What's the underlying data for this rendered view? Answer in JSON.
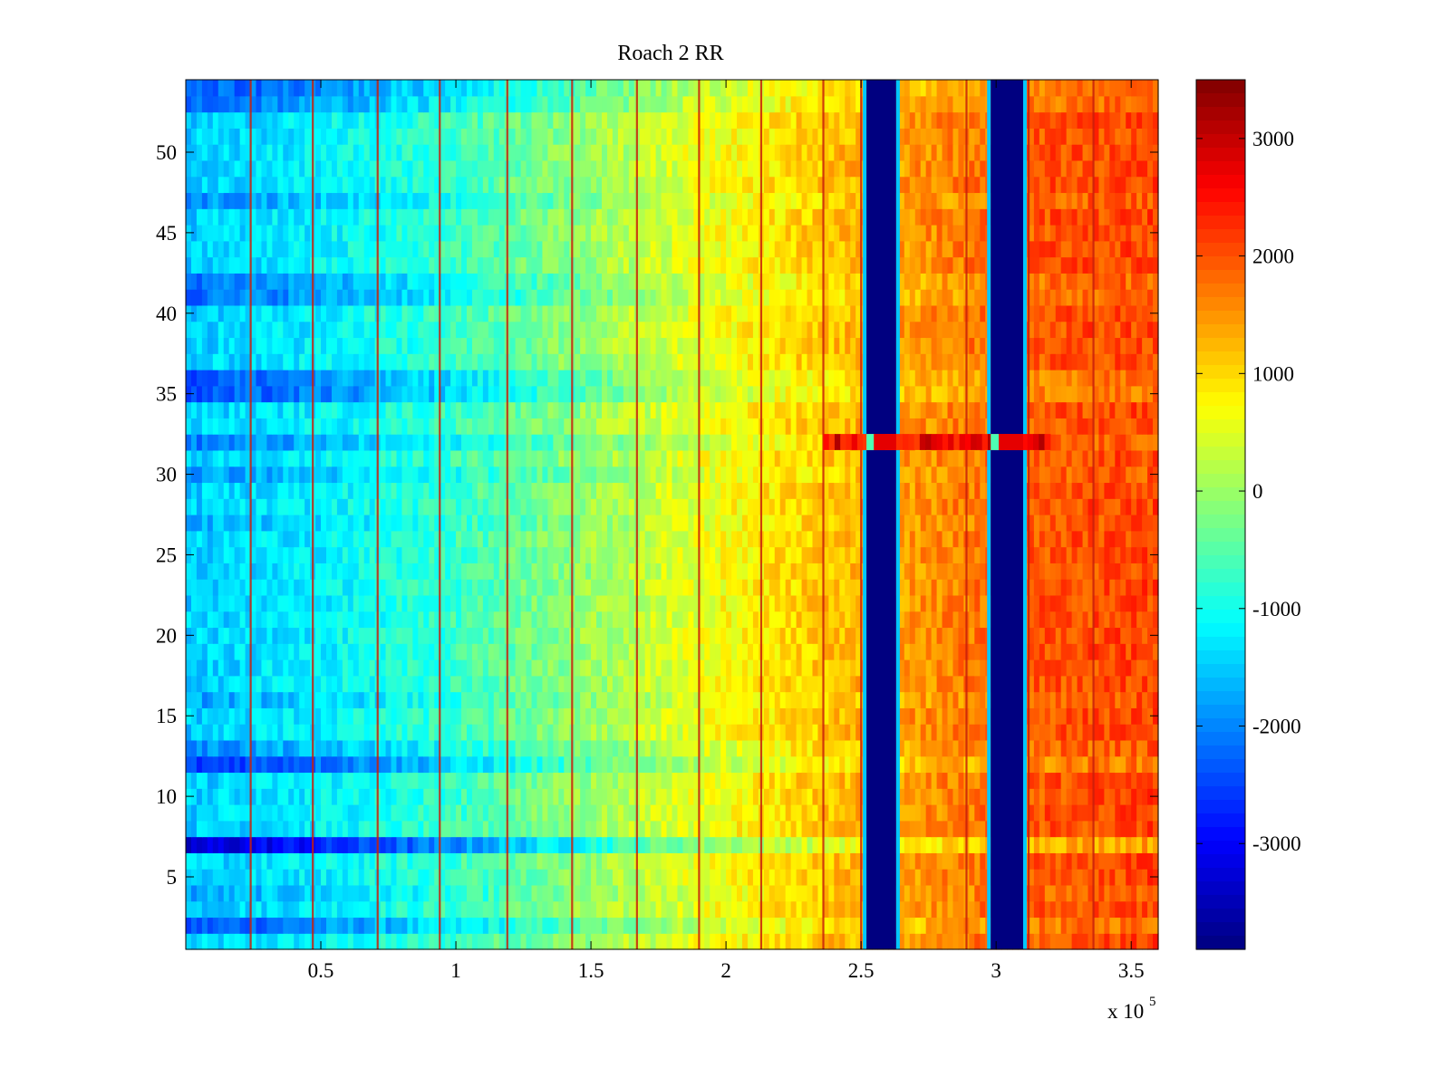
{
  "chart_data": {
    "type": "heatmap",
    "title": "Roach 2 RR",
    "xlabel": "",
    "ylabel": "",
    "x_multiplier": {
      "base": "x 10",
      "exponent": "5"
    },
    "xlim": [
      0,
      3.6
    ],
    "ylim": [
      0.5,
      54.5
    ],
    "x_ticks": [
      0.5,
      1,
      1.5,
      2,
      2.5,
      3,
      3.5
    ],
    "x_tick_labels": [
      "0.5",
      "1",
      "1.5",
      "2",
      "2.5",
      "3",
      "3.5"
    ],
    "y_ticks": [
      5,
      10,
      15,
      20,
      25,
      30,
      35,
      40,
      45,
      50
    ],
    "y_tick_labels": [
      "5",
      "10",
      "15",
      "20",
      "25",
      "30",
      "35",
      "40",
      "45",
      "50"
    ],
    "rows": 54,
    "colormap": "jet",
    "clim": [
      -3900,
      3500
    ],
    "colorbar": {
      "ticks": [
        3000,
        2000,
        1000,
        0,
        -1000,
        -2000,
        -3000
      ],
      "tick_labels": [
        "3000",
        "2000",
        "1000",
        "0",
        "-1000",
        "-2000",
        "-3000"
      ]
    },
    "trend": {
      "x": [
        0,
        0.5,
        1.0,
        1.5,
        2.0,
        2.5,
        3.2,
        3.6
      ],
      "value": [
        -1500,
        -1200,
        -700,
        0,
        700,
        1300,
        2000,
        2100
      ]
    },
    "row_offsets": [
      {
        "row": 2,
        "offset": -900
      },
      {
        "row": 4,
        "offset": -300
      },
      {
        "row": 7,
        "offset": -1900
      },
      {
        "row": 12,
        "offset": -1100
      },
      {
        "row": 13,
        "offset": -500
      },
      {
        "row": 16,
        "offset": -300
      },
      {
        "row": 27,
        "offset": -200
      },
      {
        "row": 30,
        "offset": -400
      },
      {
        "row": 32,
        "offset": -600
      },
      {
        "row": 35,
        "offset": -1000
      },
      {
        "row": 36,
        "offset": -900
      },
      {
        "row": 41,
        "offset": -700
      },
      {
        "row": 42,
        "offset": -600
      },
      {
        "row": 47,
        "offset": -400
      },
      {
        "row": 53,
        "offset": -700
      },
      {
        "row": 54,
        "offset": -900
      }
    ],
    "saturated_bands": [
      {
        "x_start": 2.52,
        "x_end": 2.63,
        "value": -3900
      },
      {
        "x_start": 2.98,
        "x_end": 3.1,
        "value": -3900
      }
    ],
    "highlighted_row": {
      "row": 32,
      "x_start": 2.36,
      "x_end": 3.2,
      "value": 2600
    },
    "vertical_spike_lines": [
      0.24,
      0.47,
      0.71,
      0.94,
      1.19,
      1.43,
      1.67,
      1.9,
      2.13,
      2.36,
      2.5,
      2.89,
      3.12,
      3.36
    ]
  }
}
